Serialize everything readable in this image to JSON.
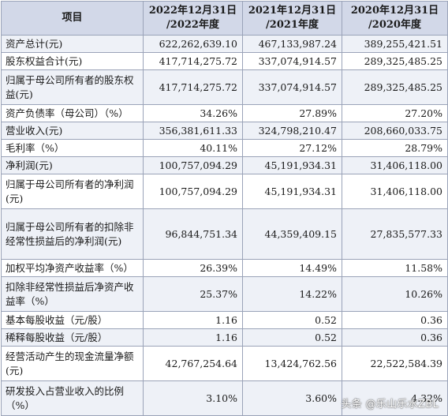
{
  "table": {
    "headers": {
      "item": "项目",
      "y2022_line1": "2022年12月31日",
      "y2022_line2": "/2022年度",
      "y2021_line1": "2021年12月31日",
      "y2021_line2": "/2021年度",
      "y2020_line1": "2020年12月31日",
      "y2020_line2": "/2020年度"
    },
    "rows": [
      {
        "label": "资产总计(元)",
        "v2022": "622,262,639.10",
        "v2021": "467,133,987.24",
        "v2020": "389,255,421.51"
      },
      {
        "label": "股东权益合计(元)",
        "v2022": "417,714,275.72",
        "v2021": "337,074,914.57",
        "v2020": "289,325,485.25"
      },
      {
        "label": "归属于母公司所有者的股东权益(元)",
        "v2022": "417,714,275.72",
        "v2021": "337,074,914.57",
        "v2020": "289,325,485.25"
      },
      {
        "label": "资产负债率（母公司）（%）",
        "v2022": "34.26%",
        "v2021": "27.89%",
        "v2020": "27.20%"
      },
      {
        "label": "营业收入(元)",
        "v2022": "356,381,611.33",
        "v2021": "324,798,210.47",
        "v2020": "208,660,033.75"
      },
      {
        "label": "毛利率（%）",
        "v2022": "40.11%",
        "v2021": "27.12%",
        "v2020": "28.79%"
      },
      {
        "label": "净利润(元)",
        "v2022": "100,757,094.29",
        "v2021": "45,191,934.31",
        "v2020": "31,406,118.00"
      },
      {
        "label": "归属于母公司所有者的净利润(元)",
        "v2022": "100,757,094.29",
        "v2021": "45,191,934.31",
        "v2020": "31,406,118.00"
      },
      {
        "label": "归属于母公司所有者的扣除非经常性损益后的净利润(元)",
        "v2022": "96,844,751.34",
        "v2021": "44,359,409.15",
        "v2020": "27,835,577.33"
      },
      {
        "label": "加权平均净资产收益率（%）",
        "v2022": "26.39%",
        "v2021": "14.49%",
        "v2020": "11.58%"
      },
      {
        "label": "扣除非经常性损益后净资产收益率（%）",
        "v2022": "25.37%",
        "v2021": "14.22%",
        "v2020": "10.26%"
      },
      {
        "label": "基本每股收益（元/股）",
        "v2022": "1.16",
        "v2021": "0.52",
        "v2020": "0.36"
      },
      {
        "label": "稀释每股收益（元/股）",
        "v2022": "1.16",
        "v2021": "0.52",
        "v2020": "0.36"
      },
      {
        "label": "经营活动产生的现金流量净额(元)",
        "v2022": "42,767,254.64",
        "v2021": "13,424,762.56",
        "v2020": "22,522,584.39"
      },
      {
        "label": "研发投入占营业收入的比例（%）",
        "v2022": "3.10%",
        "v2021": "3.60%",
        "v2020": "4.32%"
      }
    ]
  },
  "watermark": "头条 @乐山乐水ZBL"
}
